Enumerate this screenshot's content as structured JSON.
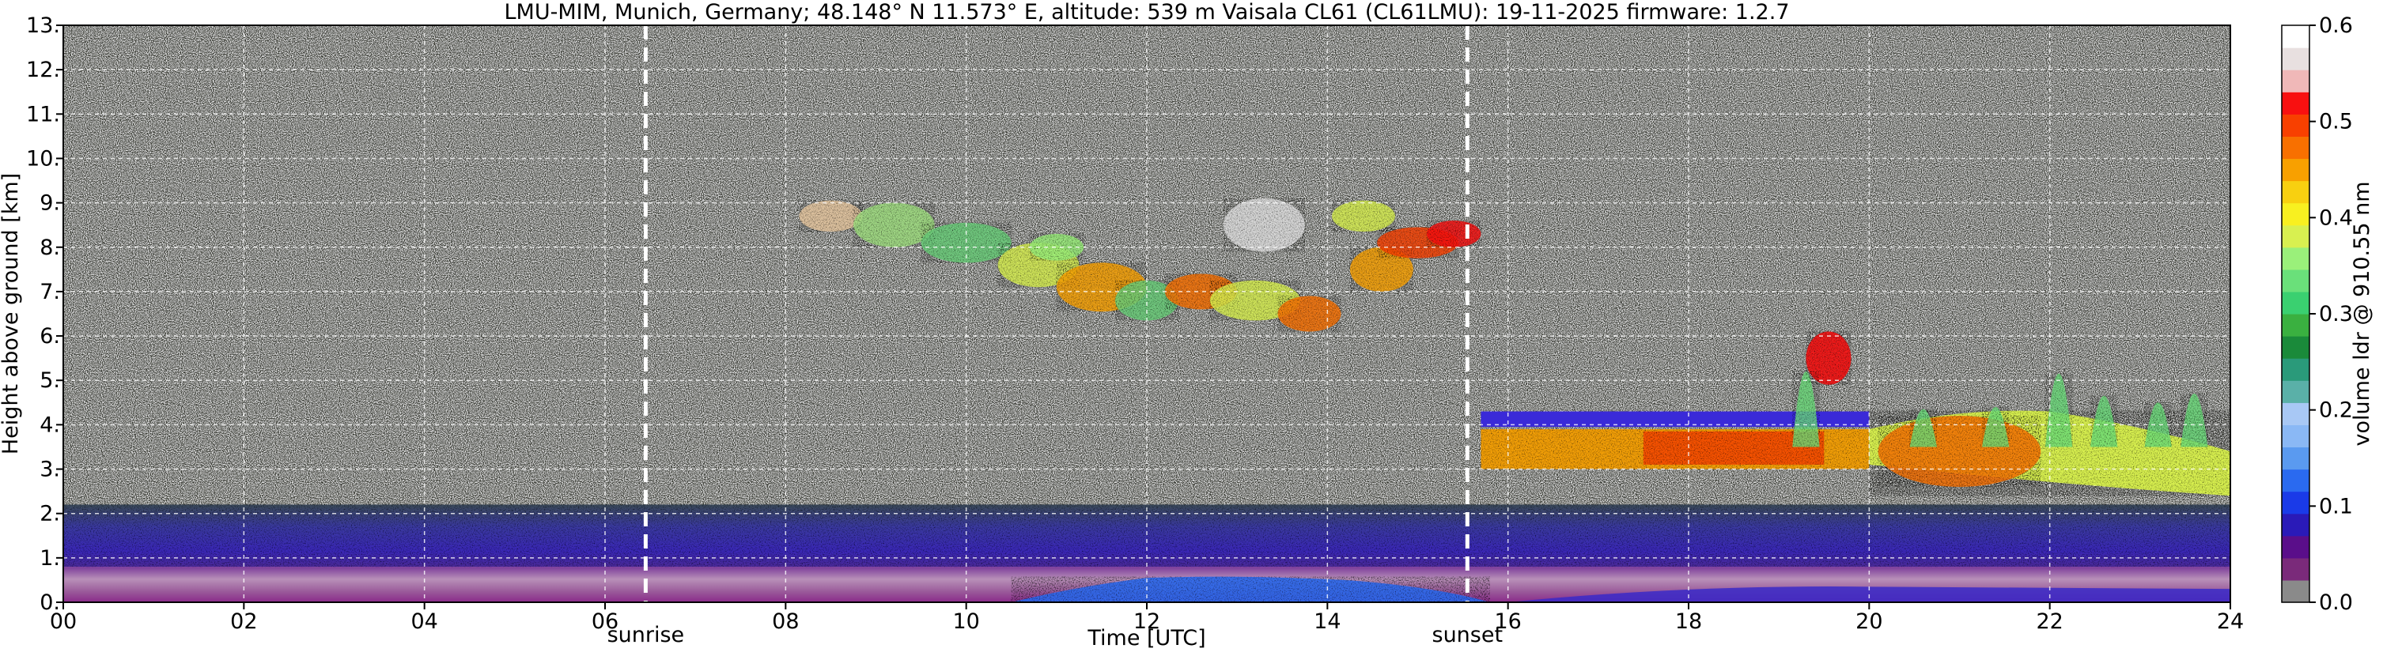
{
  "chart_data": {
    "type": "heatmap",
    "title": "LMU-MIM, Munich, Germany; 48.148° N 11.573° E, altitude: 539 m    Vaisala CL61 (CL61LMU): 19-11-2025    firmware: 1.2.7",
    "xlabel": "Time [UTC]",
    "ylabel": "Height above ground [km]",
    "colorbar_label": "volume ldr @ 910.55 nm",
    "xlim": [
      0,
      24
    ],
    "ylim": [
      0,
      13
    ],
    "clim": [
      0,
      0.6
    ],
    "grid": true,
    "x_ticks": [
      0,
      2,
      4,
      6,
      8,
      10,
      12,
      14,
      16,
      18,
      20,
      22,
      24
    ],
    "x_tick_labels": [
      "00",
      "02",
      "04",
      "06",
      "08",
      "10",
      "12",
      "14",
      "16",
      "18",
      "20",
      "22",
      "24"
    ],
    "y_ticks": [
      0,
      1,
      2,
      3,
      4,
      5,
      6,
      7,
      8,
      9,
      10,
      11,
      12,
      13
    ],
    "y_tick_labels": [
      "0.",
      "1.",
      "2.",
      "3.",
      "4.",
      "5.",
      "6.",
      "7.",
      "8.",
      "9.",
      "10.",
      "11.",
      "12.",
      "13."
    ],
    "colorbar_ticks": [
      0.0,
      0.1,
      0.2,
      0.3,
      0.4,
      0.5,
      0.6
    ],
    "colorbar_tick_labels": [
      "0.0",
      "0.1",
      "0.2",
      "0.3",
      "0.4",
      "0.5",
      "0.6"
    ],
    "colorbar_colors": [
      "#8a8a8a",
      "#7a2a7a",
      "#5a0e8a",
      "#2a1ab8",
      "#1a3ae8",
      "#2a6af0",
      "#5a9af0",
      "#8ab8f5",
      "#a8c8f5",
      "#5ab0a8",
      "#2a9a7a",
      "#1a8a3a",
      "#3ab040",
      "#3ad070",
      "#6ae07a",
      "#9af07a",
      "#d8f050",
      "#f8f020",
      "#f8d010",
      "#f8a000",
      "#f87000",
      "#f84000",
      "#f81010",
      "#f0b8b8",
      "#e8e0e0",
      "#ffffff"
    ],
    "annotations": [
      {
        "label": "sunrise",
        "x": 6.45
      },
      {
        "label": "sunset",
        "x": 15.55
      }
    ],
    "features": [
      {
        "kind": "noise_background",
        "y_range": [
          2.2,
          13
        ],
        "x_range": [
          0,
          24
        ]
      },
      {
        "kind": "surface_layer",
        "y_range": [
          0,
          0.8
        ],
        "x_range": [
          0,
          24
        ]
      },
      {
        "kind": "boundary_layer",
        "y_range": [
          0.8,
          2.2
        ],
        "x_range": [
          0,
          24
        ]
      },
      {
        "kind": "cirrus",
        "x_range": [
          8.3,
          16.0
        ],
        "y_range": [
          6.0,
          9.9
        ]
      },
      {
        "kind": "mid_cloud_layer",
        "x_range": [
          15.7,
          20.0
        ],
        "y_range": [
          3.0,
          4.3
        ]
      },
      {
        "kind": "mixed_phase_cloud",
        "x_range": [
          20.0,
          24.0
        ],
        "y_range": [
          2.4,
          6.9
        ]
      }
    ]
  }
}
